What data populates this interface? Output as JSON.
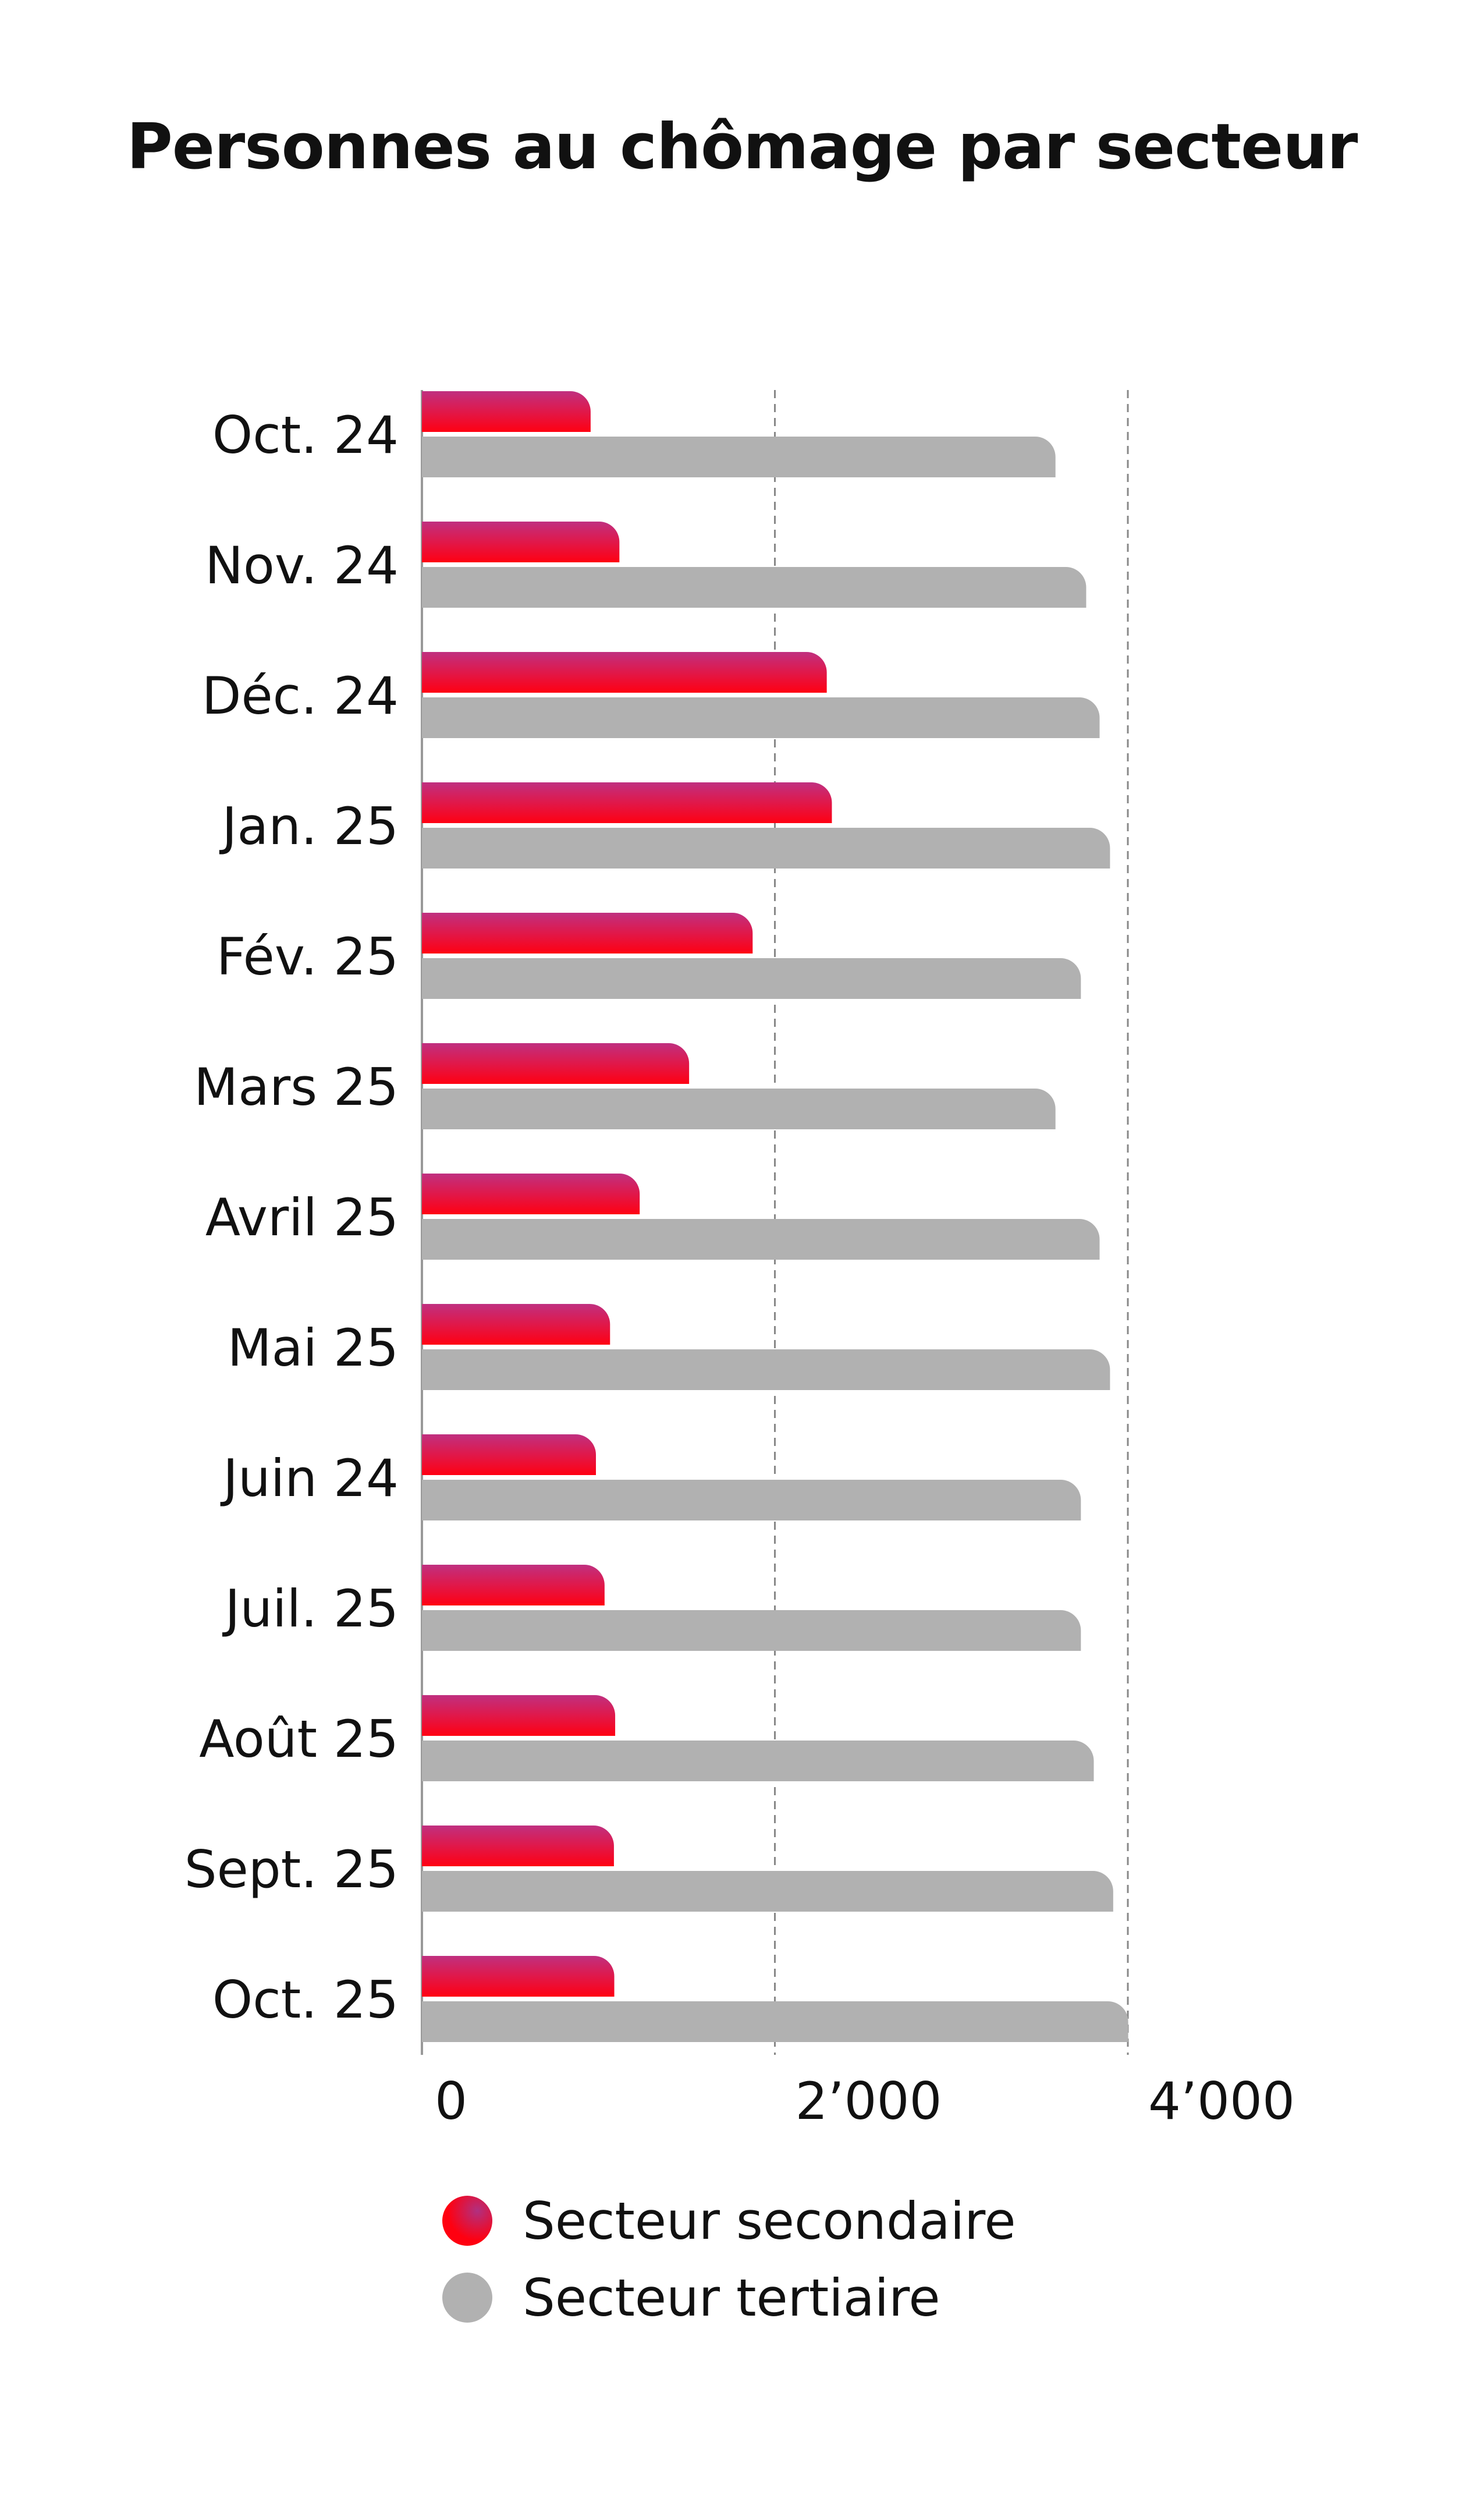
{
  "title": "Personnes au chômage par secteur",
  "chart_data": {
    "type": "bar",
    "orientation": "horizontal",
    "title": "Personnes au chômage par secteur",
    "categories": [
      "Oct. 24",
      "Nov. 24",
      "Déc. 24",
      "Jan. 25",
      "Fév. 25",
      "Mars 25",
      "Avril 25",
      "Mai 25",
      "Juin 24",
      "Juil. 25",
      "Août 25",
      "Sept. 25",
      "Oct. 25"
    ],
    "series": [
      {
        "name": "Secteur secondaire",
        "color": "#e8102a",
        "values": [
          956,
          1119,
          2294,
          2323,
          1874,
          1514,
          1234,
          1066,
          986,
          1035,
          1095,
          1088,
          1090
        ]
      },
      {
        "name": "Secteur tertiaire",
        "color": "#b1b1b1",
        "values": [
          3590,
          3764,
          3840,
          3899,
          3734,
          3590,
          3840,
          3899,
          3734,
          3734,
          3807,
          3917,
          4002
        ]
      }
    ],
    "xlim": [
      0,
      4000
    ],
    "xticks": [
      0,
      2000,
      4000
    ],
    "xtick_labels": [
      "0",
      "2’000",
      "4’000"
    ],
    "grid": "vertical dashed",
    "legend": "bottom"
  },
  "legend": [
    {
      "label": "Secteur secondaire",
      "color": "#e8102a"
    },
    {
      "label": "Secteur tertiaire",
      "color": "#b1b1b1"
    }
  ]
}
